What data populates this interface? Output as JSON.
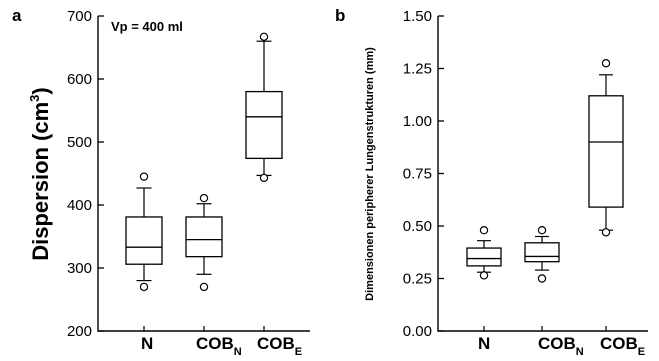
{
  "chart_data": [
    {
      "panel": "a",
      "type": "box",
      "ylabel": "Dispersion (cm",
      "ylabel_sup": "3",
      "ylabel_end": ")",
      "annotation": "Vp = 400 ml",
      "ylim": [
        200,
        700
      ],
      "yticks": [
        200,
        300,
        400,
        500,
        600,
        700
      ],
      "categories": [
        {
          "base": "N",
          "sub": ""
        },
        {
          "base": "COB",
          "sub": "N"
        },
        {
          "base": "COB",
          "sub": "E"
        }
      ],
      "boxes": [
        {
          "whisker_low": 280,
          "q1": 306,
          "median": 333,
          "q3": 381,
          "whisker_high": 427,
          "outliers": [
            270,
            445
          ]
        },
        {
          "whisker_low": 290,
          "q1": 318,
          "median": 345,
          "q3": 381,
          "whisker_high": 402,
          "outliers": [
            270,
            411
          ]
        },
        {
          "whisker_low": 447,
          "q1": 474,
          "median": 540,
          "q3": 580,
          "whisker_high": 660,
          "outliers": [
            443,
            667
          ]
        }
      ]
    },
    {
      "panel": "b",
      "type": "box",
      "ylabel": "Dimensionen peripherer Lungenstrukturen (mm)",
      "ylim": [
        0.0,
        1.5
      ],
      "yticks": [
        "0.00",
        "0.25",
        "0.50",
        "0.75",
        "1.00",
        "1.25",
        "1.50"
      ],
      "categories": [
        {
          "base": "N",
          "sub": ""
        },
        {
          "base": "COB",
          "sub": "N"
        },
        {
          "base": "COB",
          "sub": "E"
        }
      ],
      "boxes": [
        {
          "whisker_low": 0.28,
          "q1": 0.31,
          "median": 0.345,
          "q3": 0.395,
          "whisker_high": 0.43,
          "outliers": [
            0.265,
            0.48
          ]
        },
        {
          "whisker_low": 0.29,
          "q1": 0.33,
          "median": 0.355,
          "q3": 0.42,
          "whisker_high": 0.45,
          "outliers": [
            0.25,
            0.48
          ]
        },
        {
          "whisker_low": 0.48,
          "q1": 0.59,
          "median": 0.9,
          "q3": 1.12,
          "whisker_high": 1.22,
          "outliers": [
            0.47,
            1.275
          ]
        }
      ]
    }
  ]
}
